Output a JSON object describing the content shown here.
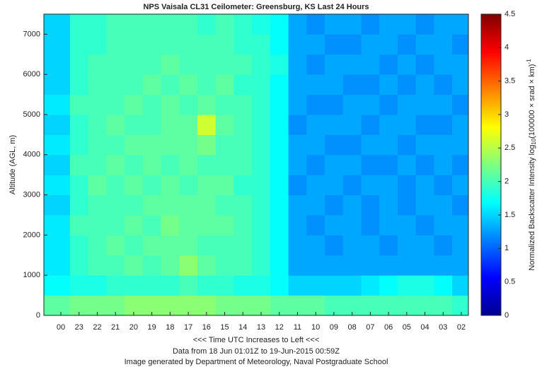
{
  "chart_data": {
    "type": "heatmap",
    "title": "NPS Vaisala CL31 Ceilometer:  Greensburg, KS Last 24 Hours",
    "y_label": "Altitude (AGL, m)",
    "x_label": "<<<  Time UTC Increases to Left  <<<",
    "notes": [
      "Data from 18 Jun 01:01Z to 19-Jun-2015 00:59Z",
      "Image generated by Department of Meteorology, Naval Postgraduate School"
    ],
    "colorbar_label": [
      "Normalized Backscatter Intensity log",
      "10",
      "(100000 × srad × km)",
      "-1"
    ],
    "categories": [
      "00",
      "23",
      "22",
      "21",
      "20",
      "19",
      "18",
      "17",
      "16",
      "15",
      "14",
      "13",
      "12",
      "11",
      "10",
      "09",
      "08",
      "07",
      "06",
      "05",
      "04",
      "03",
      "02"
    ],
    "ybins": [
      0,
      500,
      1000,
      1500,
      2000,
      2500,
      3000,
      3500,
      4000,
      4500,
      5000,
      5500,
      6000,
      6500,
      7000,
      7500
    ],
    "ylim": [
      0,
      7500
    ],
    "yticks": [
      0,
      1000,
      2000,
      3000,
      4000,
      5000,
      6000,
      7000
    ],
    "clim": [
      0,
      4.5
    ],
    "cticks": [
      0,
      0.5,
      1,
      {
        "value": 1.5,
        "label": "1.5"
      },
      2,
      {
        "value": 2.5,
        "label": "2.5"
      },
      3,
      {
        "value": 3.5,
        "label": "3.5"
      },
      4,
      {
        "value": 4.5,
        "label": "4.5"
      }
    ],
    "colormap": "jet",
    "values": [
      [
        2.1,
        2.2,
        2.2,
        2.2,
        2.3,
        2.3,
        2.3,
        2.3,
        2.3,
        2.2,
        2.2,
        2.2,
        2.1,
        2.1,
        2.1,
        2.0,
        2.0,
        2.0,
        2.0,
        2.0,
        2.0,
        2.0,
        1.9
      ],
      [
        1.7,
        1.8,
        1.8,
        1.9,
        1.9,
        1.9,
        1.9,
        2.0,
        1.9,
        1.9,
        1.8,
        1.8,
        1.7,
        1.5,
        1.5,
        1.5,
        1.5,
        1.6,
        1.7,
        1.8,
        1.8,
        1.7,
        1.5
      ],
      [
        1.6,
        1.9,
        2.0,
        2.0,
        2.1,
        2.0,
        2.1,
        2.3,
        2.1,
        2.0,
        2.0,
        1.9,
        1.7,
        1.3,
        1.3,
        1.3,
        1.3,
        1.3,
        1.3,
        1.3,
        1.3,
        1.3,
        1.3
      ],
      [
        1.6,
        1.9,
        2.0,
        2.1,
        2.0,
        2.1,
        2.1,
        2.1,
        2.0,
        2.0,
        2.0,
        1.9,
        1.7,
        1.3,
        1.3,
        1.2,
        1.3,
        1.3,
        1.2,
        1.3,
        1.3,
        1.2,
        1.3
      ],
      [
        1.6,
        2.0,
        2.0,
        2.0,
        2.1,
        2.0,
        2.2,
        2.1,
        2.1,
        2.1,
        2.0,
        1.9,
        1.7,
        1.3,
        1.2,
        1.3,
        1.3,
        1.2,
        1.3,
        1.3,
        1.2,
        1.3,
        1.3
      ],
      [
        1.5,
        1.9,
        2.0,
        2.0,
        2.0,
        2.1,
        2.1,
        2.1,
        2.1,
        2.0,
        2.0,
        1.9,
        1.7,
        1.3,
        1.3,
        1.2,
        1.3,
        1.2,
        1.3,
        1.2,
        1.3,
        1.3,
        1.2
      ],
      [
        1.6,
        1.9,
        2.1,
        2.0,
        2.1,
        2.0,
        2.1,
        2.0,
        2.1,
        2.1,
        1.9,
        1.9,
        1.7,
        1.2,
        1.3,
        1.3,
        1.2,
        1.3,
        1.3,
        1.2,
        1.3,
        1.2,
        1.3
      ],
      [
        1.5,
        2.0,
        2.0,
        2.1,
        2.0,
        2.1,
        2.0,
        2.1,
        2.0,
        2.0,
        2.0,
        1.9,
        1.7,
        1.3,
        1.2,
        1.3,
        1.3,
        1.2,
        1.2,
        1.3,
        1.2,
        1.3,
        1.2
      ],
      [
        1.6,
        1.9,
        2.0,
        2.0,
        2.1,
        2.1,
        2.1,
        2.1,
        2.2,
        2.0,
        2.0,
        1.9,
        1.7,
        1.3,
        1.3,
        1.2,
        1.2,
        1.3,
        1.3,
        1.2,
        1.3,
        1.3,
        1.3
      ],
      [
        1.5,
        1.9,
        2.0,
        2.1,
        2.0,
        2.0,
        2.1,
        2.1,
        2.6,
        2.1,
        2.0,
        1.9,
        1.7,
        1.2,
        1.3,
        1.3,
        1.3,
        1.2,
        1.3,
        1.3,
        1.2,
        1.2,
        1.3
      ],
      [
        1.6,
        2.0,
        2.0,
        2.0,
        2.1,
        2.0,
        2.1,
        2.0,
        2.1,
        2.0,
        2.0,
        1.9,
        1.7,
        1.3,
        1.2,
        1.2,
        1.3,
        1.3,
        1.2,
        1.3,
        1.3,
        1.3,
        1.2
      ],
      [
        1.5,
        1.9,
        2.0,
        2.0,
        2.0,
        2.1,
        2.0,
        2.1,
        2.0,
        2.1,
        1.9,
        1.9,
        1.7,
        1.3,
        1.3,
        1.3,
        1.2,
        1.2,
        1.3,
        1.2,
        1.3,
        1.2,
        1.3
      ],
      [
        1.5,
        1.9,
        2.0,
        2.0,
        2.0,
        2.0,
        2.1,
        2.0,
        2.0,
        2.0,
        2.0,
        1.9,
        1.8,
        1.3,
        1.2,
        1.3,
        1.3,
        1.3,
        1.2,
        1.3,
        1.2,
        1.3,
        1.3
      ],
      [
        1.5,
        1.9,
        1.9,
        2.0,
        2.0,
        2.0,
        2.0,
        2.0,
        2.0,
        2.0,
        1.9,
        1.9,
        1.7,
        1.3,
        1.3,
        1.2,
        1.2,
        1.3,
        1.3,
        1.2,
        1.3,
        1.3,
        1.2
      ],
      [
        1.5,
        1.9,
        1.9,
        2.0,
        2.0,
        2.0,
        2.0,
        2.0,
        1.9,
        2.0,
        1.9,
        1.8,
        1.7,
        1.3,
        1.2,
        1.3,
        1.3,
        1.2,
        1.3,
        1.3,
        1.2,
        1.3,
        1.3
      ]
    ]
  }
}
